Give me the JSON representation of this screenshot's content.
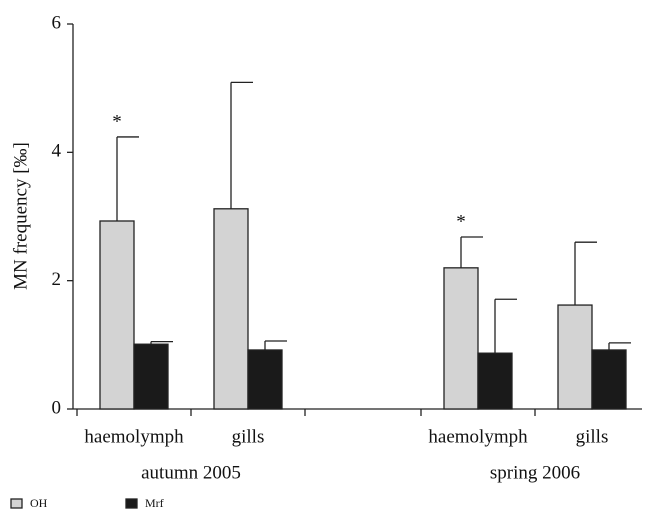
{
  "chart_data": {
    "type": "bar",
    "y_label": "MN frequency [‰]",
    "groups": [
      {
        "label": "autumn 2005",
        "categories": [
          "haemolymph",
          "gills"
        ]
      },
      {
        "label": "spring 2006",
        "categories": [
          "haemolymph",
          "gills"
        ]
      }
    ],
    "series": [
      {
        "name": "OH",
        "color": "#d3d3d3",
        "values": [
          2.93,
          3.12,
          2.2,
          1.62
        ],
        "errors": [
          1.31,
          1.97,
          0.48,
          0.98
        ]
      },
      {
        "name": "Mrf",
        "color": "#1a1a1a",
        "values": [
          1.01,
          0.92,
          0.87,
          0.92
        ],
        "errors": [
          0.04,
          0.14,
          0.84,
          0.11
        ]
      }
    ],
    "annotations": [
      "*",
      null,
      "*",
      null
    ],
    "ylim": [
      0,
      6
    ],
    "yticks": [
      0,
      2,
      4,
      6
    ],
    "grid": false
  }
}
